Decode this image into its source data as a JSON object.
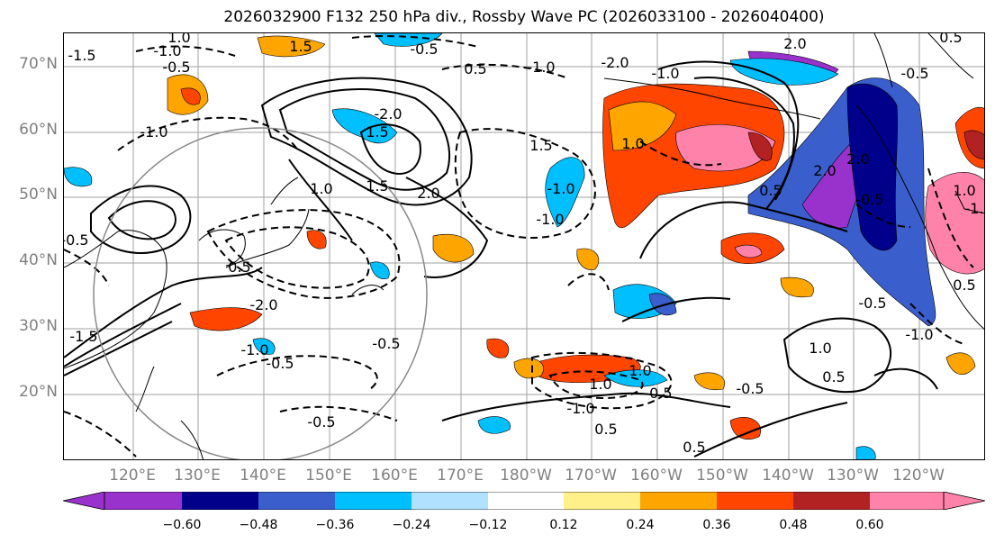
{
  "title": "2026032900 F132 250 hPa div., Rossby Wave PC (2026033100 - 2026040400)",
  "lat_labels": [
    "70°N",
    "60°N",
    "50°N",
    "40°N",
    "30°N",
    "20°N"
  ],
  "lon_labels": [
    "120°E",
    "130°E",
    "140°E",
    "150°E",
    "160°E",
    "170°E",
    "180°W",
    "170°W",
    "160°W",
    "150°W",
    "140°W",
    "130°W",
    "120°W"
  ],
  "colorbar": {
    "colors": [
      "#9932cc",
      "#00008b",
      "#3a5fcd",
      "#00bfff",
      "#b0e2ff",
      "#ffffff",
      "#fff08a",
      "#ffa500",
      "#ff4500",
      "#b22222",
      "#ff82ab"
    ],
    "tick_labels": [
      "−0.60",
      "−0.48",
      "−0.36",
      "−0.24",
      "−0.12",
      "0.12",
      "0.24",
      "0.36",
      "0.48",
      "0.60"
    ]
  },
  "contour_labels": [
    "1.5",
    "1.0",
    "-0.5",
    "-1.0",
    "-0.5",
    "0.5",
    "-1.0",
    "-1.5",
    "0.5",
    "2.0",
    "-2.0",
    "-1.0",
    "1.5",
    "1.0",
    "-1.0",
    "1.5",
    "2.0",
    "-1.0",
    "1.0",
    "-0.5",
    "-1.5",
    "0.5",
    "-1.0",
    "-2.0",
    "1.5",
    "-2.0",
    "2.0",
    "-1.0",
    "-0.5",
    "-0.5",
    "-0.5",
    "-1.0",
    "1.0",
    "1.0",
    "-0.5",
    "0.5",
    "2.0",
    "-1.0",
    "0.5",
    "-0.5",
    "0.5",
    "-0.5",
    "-1.0",
    "1.0",
    "0.5",
    "-0.5",
    "0.5",
    "-0.5",
    "1.0"
  ]
}
